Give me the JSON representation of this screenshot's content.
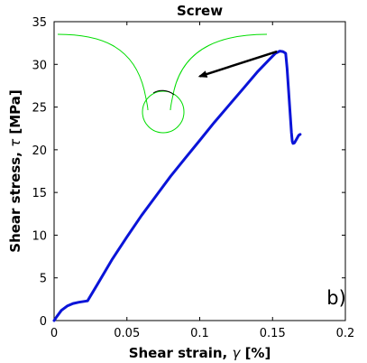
{
  "chart_data": {
    "type": "line",
    "title": "Screw",
    "xlabel_text": "Shear strain, ",
    "xlabel_symbol": "γ",
    "xlabel_unit": " [%]",
    "ylabel_text": "Shear stress, ",
    "ylabel_symbol": "τ",
    "ylabel_unit": " [MPa]",
    "xlim": [
      0,
      0.2
    ],
    "ylim": [
      0,
      35
    ],
    "xticks": [
      0,
      0.05,
      0.1,
      0.15,
      0.2
    ],
    "xtick_labels": [
      "0",
      "0.05",
      "0.1",
      "0.15",
      "0.2"
    ],
    "yticks": [
      0,
      5,
      10,
      15,
      20,
      25,
      30,
      35
    ],
    "ytick_labels": [
      "0",
      "5",
      "10",
      "15",
      "20",
      "25",
      "30",
      "35"
    ],
    "grid": false,
    "panel_label": "b)",
    "series": [
      {
        "color": "#0a14d8",
        "x": [
          0,
          0.002,
          0.005,
          0.009,
          0.013,
          0.017,
          0.021,
          0.023,
          0.03,
          0.04,
          0.05,
          0.06,
          0.07,
          0.08,
          0.09,
          0.1,
          0.11,
          0.12,
          0.13,
          0.14,
          0.148,
          0.152,
          0.155,
          0.157,
          0.159,
          0.16,
          0.161,
          0.162,
          0.163,
          0.1635,
          0.164,
          0.165,
          0.166,
          0.167,
          0.168,
          0.169
        ],
        "y": [
          0,
          0.5,
          1.2,
          1.7,
          2.0,
          2.15,
          2.25,
          2.3,
          4.3,
          7.2,
          9.8,
          12.3,
          14.6,
          16.9,
          19.0,
          21.1,
          23.2,
          25.2,
          27.2,
          29.2,
          30.6,
          31.3,
          31.55,
          31.5,
          31.3,
          29.5,
          27.0,
          24.5,
          22.0,
          21.0,
          20.75,
          20.8,
          21.1,
          21.4,
          21.7,
          21.8
        ]
      }
    ],
    "annotations": [
      {
        "type": "arrow",
        "color": "#000000",
        "from": [
          0.153,
          31.5
        ],
        "to": [
          0.1,
          28.6
        ]
      }
    ],
    "inset": {
      "description_colors": {
        "outline": "#00dd00",
        "bond": "#000000"
      }
    }
  }
}
